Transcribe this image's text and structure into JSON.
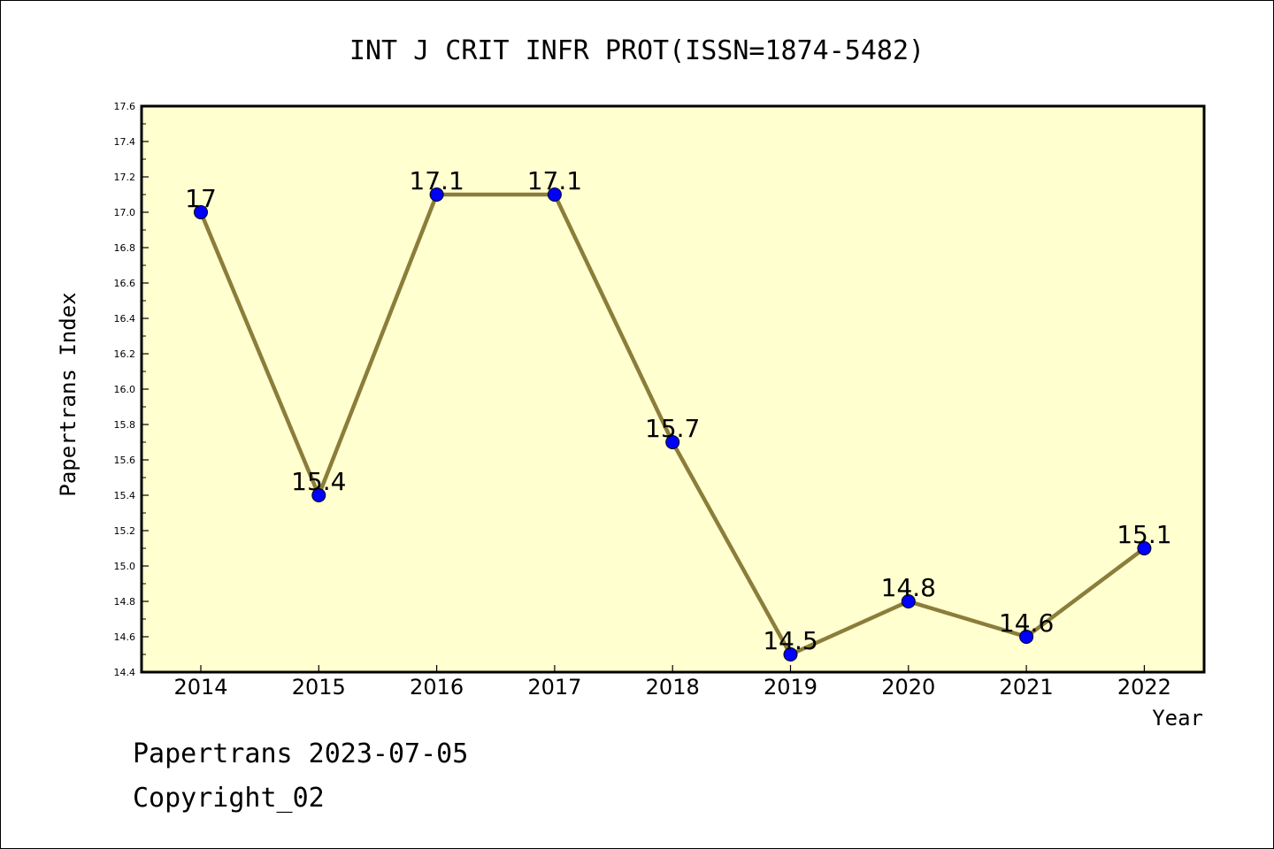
{
  "chart_data": {
    "type": "line",
    "title": "INT J CRIT INFR PROT(ISSN=1874-5482)",
    "xlabel": "Year",
    "ylabel": "Papertrans Index",
    "categories": [
      "2014",
      "2015",
      "2016",
      "2017",
      "2018",
      "2019",
      "2020",
      "2021",
      "2022"
    ],
    "values": [
      17,
      15.4,
      17.1,
      17.1,
      15.7,
      14.5,
      14.8,
      14.6,
      15.1
    ],
    "data_labels": [
      "17",
      "15.4",
      "17.1",
      "17.1",
      "15.7",
      "14.5",
      "14.8",
      "14.6",
      "15.1"
    ],
    "ylim": [
      14.4,
      17.6
    ],
    "yticks": [
      "14.4",
      "14.6",
      "14.8",
      "15.0",
      "15.2",
      "15.4",
      "15.6",
      "15.8",
      "16.0",
      "16.2",
      "16.4",
      "16.6",
      "16.8",
      "17.0",
      "17.2",
      "17.4",
      "17.6"
    ],
    "grid": false,
    "colors": {
      "plot_background": "#ffffd0",
      "line": "#8b7d3a",
      "marker": "#0000ff"
    }
  },
  "footer": {
    "line1": "Papertrans 2023-07-05",
    "line2": "Copyright_02"
  }
}
